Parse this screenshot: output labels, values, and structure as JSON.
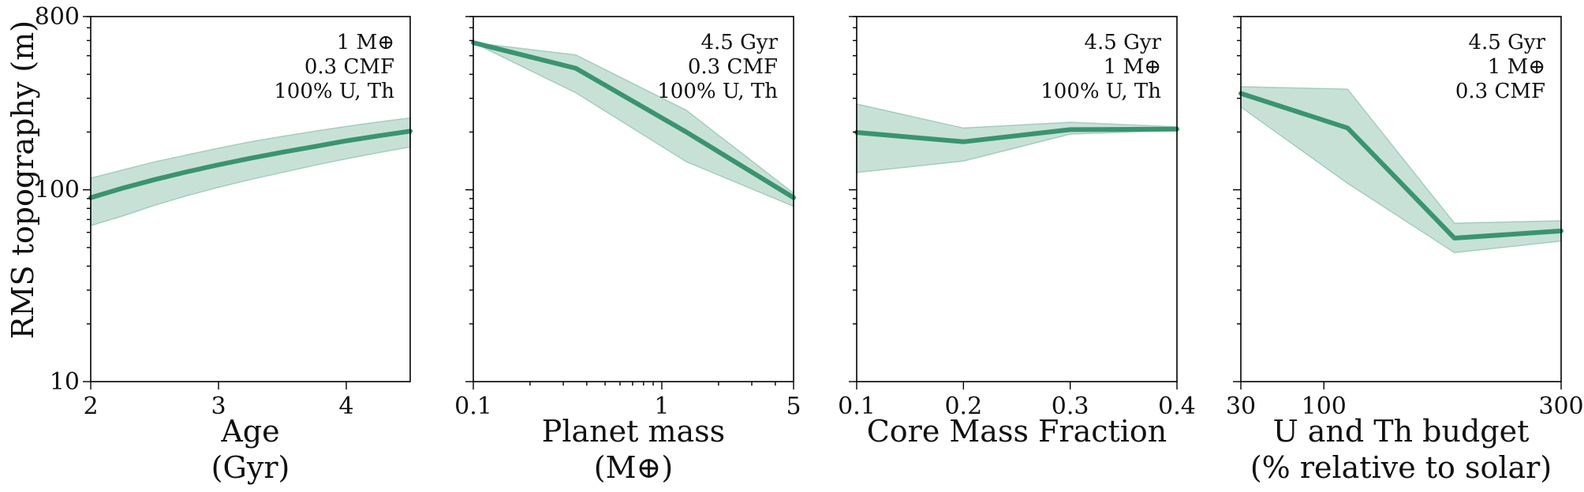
{
  "chart_data": [
    {
      "type": "line",
      "xscale": "linear",
      "yscale": "log",
      "xlim": [
        2,
        4.5
      ],
      "ylim": [
        10,
        800
      ],
      "xticks": [
        {
          "v": 2,
          "label": "2"
        },
        {
          "v": 3,
          "label": "3"
        },
        {
          "v": 4,
          "label": "4"
        }
      ],
      "yticks": [
        {
          "v": 10,
          "label": "10"
        },
        {
          "v": 100,
          "label": "100"
        },
        {
          "v": 800,
          "label": "800"
        }
      ],
      "ylabel": "RMS topography (m)",
      "xlabel": [
        "Age",
        "(Gyr)"
      ],
      "annotation": [
        "1 M⊕",
        "0.3 CMF",
        "100% U, Th"
      ],
      "x": [
        2.0,
        2.25,
        2.5,
        2.75,
        3.0,
        3.25,
        3.5,
        3.75,
        4.0,
        4.25,
        4.5
      ],
      "y": [
        91,
        102,
        113,
        124,
        135,
        146,
        157,
        168,
        180,
        191,
        202
      ],
      "y_lower": [
        65,
        73,
        83,
        93,
        103,
        113,
        123,
        134,
        145,
        156,
        167
      ],
      "y_upper": [
        115,
        127,
        140,
        152,
        165,
        178,
        190,
        202,
        214,
        226,
        237
      ]
    },
    {
      "type": "line",
      "xscale": "log",
      "yscale": "log",
      "xlim": [
        0.1,
        5
      ],
      "ylim": [
        10,
        800
      ],
      "xticks": [
        {
          "v": 0.1,
          "label": "0.1"
        },
        {
          "v": 1,
          "label": "1"
        },
        {
          "v": 5,
          "label": "5"
        }
      ],
      "yticks": [
        {
          "v": 10,
          "label": ""
        },
        {
          "v": 100,
          "label": ""
        },
        {
          "v": 800,
          "label": ""
        }
      ],
      "xlabel": [
        "Planet mass",
        "(M⊕)"
      ],
      "annotation": [
        "4.5 Gyr",
        "0.3 CMF",
        "100% U, Th"
      ],
      "x": [
        0.1,
        0.35,
        1.35,
        5
      ],
      "y": [
        585,
        430,
        200,
        91
      ],
      "y_lower": [
        585,
        320,
        140,
        82
      ],
      "y_upper": [
        585,
        505,
        260,
        96
      ]
    },
    {
      "type": "line",
      "xscale": "linear",
      "yscale": "log",
      "xlim": [
        0.1,
        0.4
      ],
      "ylim": [
        10,
        800
      ],
      "xticks": [
        {
          "v": 0.1,
          "label": "0.1"
        },
        {
          "v": 0.2,
          "label": "0.2"
        },
        {
          "v": 0.3,
          "label": "0.3"
        },
        {
          "v": 0.4,
          "label": "0.4"
        }
      ],
      "yticks": [
        {
          "v": 10,
          "label": ""
        },
        {
          "v": 100,
          "label": ""
        },
        {
          "v": 800,
          "label": ""
        }
      ],
      "xlabel": [
        "Core Mass Fraction"
      ],
      "annotation": [
        "4.5 Gyr",
        "1 M⊕",
        "100% U, Th"
      ],
      "x": [
        0.1,
        0.2,
        0.3,
        0.4
      ],
      "y": [
        199,
        178,
        206,
        207
      ],
      "y_lower": [
        123,
        141,
        195,
        204
      ],
      "y_upper": [
        280,
        210,
        225,
        213
      ]
    },
    {
      "type": "line",
      "xscale": "linear",
      "yscale": "log",
      "xlim": [
        30,
        300
      ],
      "ylim": [
        10,
        800
      ],
      "xticks": [
        {
          "v": 30,
          "label": "30"
        },
        {
          "v": 100,
          "label": "100"
        },
        {
          "v": 300,
          "label": "300"
        }
      ],
      "yticks": [
        {
          "v": 10,
          "label": ""
        },
        {
          "v": 100,
          "label": ""
        },
        {
          "v": 800,
          "label": ""
        }
      ],
      "xlabel": [
        "U and Th budget",
        "(% relative to solar)"
      ],
      "annotation": [
        "4.5 Gyr",
        "1 M⊕",
        "0.3 CMF"
      ],
      "x": [
        30,
        120,
        210,
        300
      ],
      "y": [
        318,
        210,
        56,
        61
      ],
      "y_lower": [
        270,
        108,
        47,
        54
      ],
      "y_upper": [
        345,
        335,
        67,
        69
      ]
    }
  ]
}
